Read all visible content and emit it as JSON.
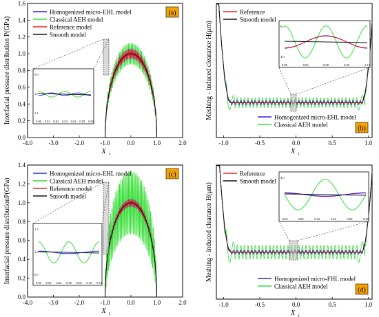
{
  "colors": {
    "homogenized": "#2222ee",
    "classical": "#33dd33",
    "reference": "#ee2222",
    "smooth": "#111111",
    "axis": "#000000",
    "panel_label_bg": "#f5a300"
  },
  "chart_data": [
    {
      "id": "a",
      "type": "line",
      "panel_label": "(a)",
      "xlabel": "X",
      "xlabel_sub": "1",
      "ylabel": "Interfacial pressure distribution P(GPa)",
      "xlim": [
        -4.0,
        2.0
      ],
      "ylim": [
        0.0,
        1.6
      ],
      "xticks": [
        "-4.0",
        "-3.0",
        "-2.0",
        "-1.0",
        "0.0",
        "1.0",
        "2.0"
      ],
      "yticks": [
        "0.0",
        "0.2",
        "0.4",
        "0.6",
        "0.8",
        "1.0",
        "1.2",
        "1.4",
        "1.6"
      ],
      "legend_position": "top-left",
      "series": [
        {
          "name": "Homogenized micro-EHL model",
          "color_key": "homogenized",
          "osc_amplitude": 0.06
        },
        {
          "name": "Classical AEH model",
          "color_key": "classical",
          "osc_amplitude": 0.13
        },
        {
          "name": "Reference model",
          "color_key": "reference",
          "osc_amplitude": 0.055
        },
        {
          "name": "Smooth model",
          "color_key": "smooth",
          "osc_amplitude": 0.0
        }
      ],
      "base_curve": {
        "contact_half_width": 1.0,
        "peak_pressure": 1.0
      },
      "inset": {
        "xticks": [
          "0.00",
          "0.01",
          "0.02",
          "0.03",
          "0.04",
          "0.05",
          "0.06"
        ],
        "yticks": [
          "0.9",
          "1.0",
          "1.1"
        ],
        "series": [
          {
            "color_key": "classical",
            "amplitude": 0.13,
            "cycles": 2.0,
            "phase": 0.0
          },
          {
            "color_key": "homogenized",
            "amplitude": 0.06,
            "cycles": 2.0,
            "phase": 3.14
          },
          {
            "color_key": "smooth",
            "amplitude": 0.0,
            "cycles": 0.0,
            "phase": 0.0
          }
        ]
      }
    },
    {
      "id": "b",
      "type": "line",
      "panel_label": "(b)",
      "xlabel": "X",
      "xlabel_sub": "1",
      "ylabel": "Meshing - induced clearance H(μm)",
      "xlim": [
        -1.1,
        1.05
      ],
      "xticks": [
        "-1.0",
        "-0.5",
        "0.0",
        "0.5",
        "1.0"
      ],
      "yticks": [],
      "legend_top_position": "top-left",
      "legend_bottom_position": "bottom-center",
      "legend_top": [
        {
          "name": "Reference",
          "color_key": "reference"
        },
        {
          "name": "Smooth model",
          "color_key": "smooth"
        }
      ],
      "legend_bottom": [
        {
          "name": "Homogenized micro-EHL model",
          "color_key": "homogenized"
        },
        {
          "name": "Classical AEH model",
          "color_key": "classical"
        }
      ],
      "inset": {
        "xticks": [
          "0.00",
          "-0.05",
          "0.00",
          "0.05",
          "0.10"
        ],
        "yticks": [
          "6.0",
          "4.0"
        ],
        "series": [
          {
            "color_key": "classical",
            "amplitude": 0.9,
            "cycles": 2.0,
            "phase": 0.0
          },
          {
            "color_key": "homogenized",
            "amplitude": 0.35,
            "cycles": 1.0,
            "phase": 3.14
          },
          {
            "color_key": "reference",
            "amplitude": 0.33,
            "cycles": 1.0,
            "phase": 3.14
          },
          {
            "color_key": "smooth",
            "amplitude": 0.0,
            "cycles": 0.0,
            "phase": 0.0
          }
        ]
      }
    },
    {
      "id": "c",
      "type": "line",
      "panel_label": "(c)",
      "xlabel": "X",
      "xlabel_sub": "1",
      "ylabel": "Interfacial pressure distributionP(GPa)",
      "xlim": [
        -4.0,
        2.0
      ],
      "ylim": [
        0.0,
        1.4
      ],
      "xticks": [
        "-4.0",
        "-3.0",
        "-2.0",
        "-1.0",
        "0.0",
        "1.0",
        "2.0"
      ],
      "yticks": [
        "0.0",
        "0.2",
        "0.4",
        "0.6",
        "0.8",
        "1.0",
        "1.2",
        "1.4"
      ],
      "legend_position": "top-left",
      "series": [
        {
          "name": "Homogenized micro-EHL model",
          "color_key": "homogenized",
          "osc_amplitude": 0.04
        },
        {
          "name": "Classical AEH model",
          "color_key": "classical",
          "osc_amplitude": 0.34
        },
        {
          "name": "Reference model",
          "color_key": "reference",
          "osc_amplitude": 0.035
        },
        {
          "name": "Smooth model",
          "color_key": "smooth",
          "osc_amplitude": 0.0
        }
      ],
      "base_curve": {
        "contact_half_width": 1.0,
        "peak_pressure": 1.0
      },
      "inset": {
        "xticks": [
          "0.00",
          "0.02",
          "0.04",
          "0.06",
          "0.08",
          "0.10",
          "0.12"
        ],
        "yticks": [
          "1.5",
          "1.0",
          "0.5"
        ],
        "series": [
          {
            "color_key": "classical",
            "amplitude": 0.42,
            "cycles": 2.0,
            "phase": 0.0
          },
          {
            "color_key": "homogenized",
            "amplitude": 0.05,
            "cycles": 1.0,
            "phase": 0.0
          },
          {
            "color_key": "smooth",
            "amplitude": 0.0,
            "cycles": 0.0,
            "phase": 0.0
          }
        ]
      }
    },
    {
      "id": "d",
      "type": "line",
      "panel_label": "(d)",
      "xlabel": "X",
      "xlabel_sub": "1",
      "ylabel": "Meshing - induced clearance H(μm)",
      "xlim": [
        -1.1,
        1.05
      ],
      "xticks": [
        "-1.0",
        "-0.5",
        "0.0",
        "0.5",
        "1.0"
      ],
      "yticks": [],
      "legend_top_position": "top-left",
      "legend_bottom_position": "bottom-center",
      "legend_top": [
        {
          "name": "Reference",
          "color_key": "reference"
        },
        {
          "name": "Smooth model",
          "color_key": "smooth"
        }
      ],
      "legend_bottom": [
        {
          "name": "Homogenized micro-FHL model",
          "color_key": "homogenized"
        },
        {
          "name": "Classical AEH model",
          "color_key": "classical"
        }
      ],
      "inset": {
        "xticks": [
          "-0.02",
          "0.00",
          "0.02",
          "0.04",
          "0.06",
          "0.08"
        ],
        "yticks": [
          "4.0"
        ],
        "series": [
          {
            "color_key": "classical",
            "amplitude": 0.8,
            "cycles": 1.5,
            "phase": 1.57
          },
          {
            "color_key": "reference",
            "amplitude": 0.1,
            "cycles": 1.0,
            "phase": 0.0
          },
          {
            "color_key": "homogenized",
            "amplitude": 0.08,
            "cycles": 1.0,
            "phase": 0.0
          },
          {
            "color_key": "smooth",
            "amplitude": 0.0,
            "cycles": 0.0,
            "phase": 0.0
          }
        ]
      }
    }
  ]
}
